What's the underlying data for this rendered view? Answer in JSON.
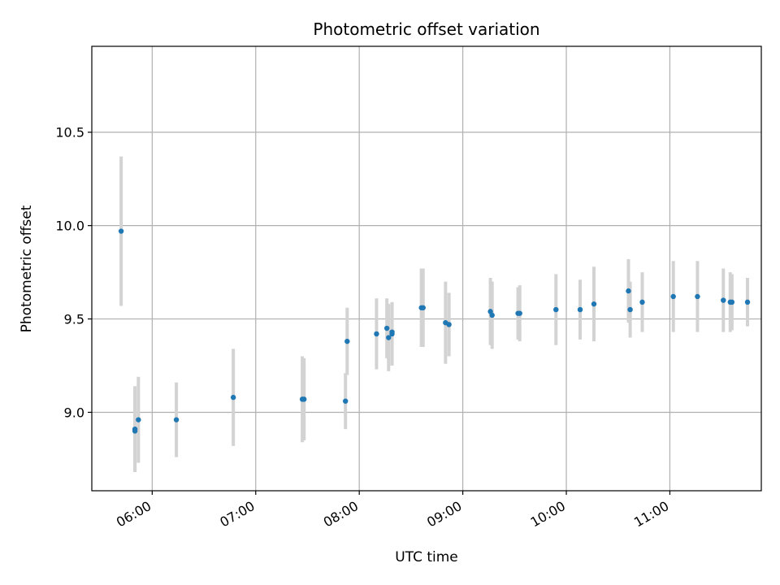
{
  "chart_data": {
    "type": "scatter",
    "title": "Photometric offset variation",
    "xlabel": "UTC time",
    "ylabel": "Photometric offset",
    "xlim": [
      "05:25",
      "11:53"
    ],
    "ylim": [
      8.58,
      10.96
    ],
    "x_ticks": [
      "06:00",
      "07:00",
      "08:00",
      "09:00",
      "10:00",
      "11:00"
    ],
    "y_ticks": [
      9.0,
      9.5,
      10.0,
      10.5
    ],
    "grid": true,
    "colors": {
      "point": "#1f77b4",
      "error_bar": "#d3d3d3",
      "grid": "#b0b0b0"
    },
    "points": [
      {
        "x": "05:42",
        "y": 9.97,
        "err": 0.4
      },
      {
        "x": "05:50",
        "y": 8.9,
        "err": 0.22
      },
      {
        "x": "05:50",
        "y": 8.91,
        "err": 0.23
      },
      {
        "x": "05:52",
        "y": 8.96,
        "err": 0.23
      },
      {
        "x": "06:14",
        "y": 8.96,
        "err": 0.2
      },
      {
        "x": "06:47",
        "y": 9.08,
        "err": 0.26
      },
      {
        "x": "07:27",
        "y": 9.07,
        "err": 0.23
      },
      {
        "x": "07:28",
        "y": 9.07,
        "err": 0.22
      },
      {
        "x": "07:52",
        "y": 9.06,
        "err": 0.15
      },
      {
        "x": "07:53",
        "y": 9.38,
        "err": 0.18
      },
      {
        "x": "08:10",
        "y": 9.42,
        "err": 0.19
      },
      {
        "x": "08:16",
        "y": 9.45,
        "err": 0.16
      },
      {
        "x": "08:17",
        "y": 9.4,
        "err": 0.18
      },
      {
        "x": "08:19",
        "y": 9.42,
        "err": 0.17
      },
      {
        "x": "08:19",
        "y": 9.43,
        "err": 0.16
      },
      {
        "x": "08:36",
        "y": 9.56,
        "err": 0.21
      },
      {
        "x": "08:37",
        "y": 9.56,
        "err": 0.21
      },
      {
        "x": "08:50",
        "y": 9.48,
        "err": 0.22
      },
      {
        "x": "08:52",
        "y": 9.47,
        "err": 0.17
      },
      {
        "x": "09:16",
        "y": 9.54,
        "err": 0.18
      },
      {
        "x": "09:17",
        "y": 9.52,
        "err": 0.18
      },
      {
        "x": "09:32",
        "y": 9.53,
        "err": 0.14
      },
      {
        "x": "09:33",
        "y": 9.53,
        "err": 0.15
      },
      {
        "x": "09:54",
        "y": 9.55,
        "err": 0.19
      },
      {
        "x": "10:08",
        "y": 9.55,
        "err": 0.16
      },
      {
        "x": "10:16",
        "y": 9.58,
        "err": 0.2
      },
      {
        "x": "10:36",
        "y": 9.65,
        "err": 0.17
      },
      {
        "x": "10:37",
        "y": 9.55,
        "err": 0.15
      },
      {
        "x": "10:44",
        "y": 9.59,
        "err": 0.16
      },
      {
        "x": "11:02",
        "y": 9.62,
        "err": 0.19
      },
      {
        "x": "11:16",
        "y": 9.62,
        "err": 0.19
      },
      {
        "x": "11:31",
        "y": 9.6,
        "err": 0.17
      },
      {
        "x": "11:35",
        "y": 9.59,
        "err": 0.16
      },
      {
        "x": "11:36",
        "y": 9.59,
        "err": 0.15
      },
      {
        "x": "11:45",
        "y": 9.59,
        "err": 0.13
      }
    ]
  }
}
